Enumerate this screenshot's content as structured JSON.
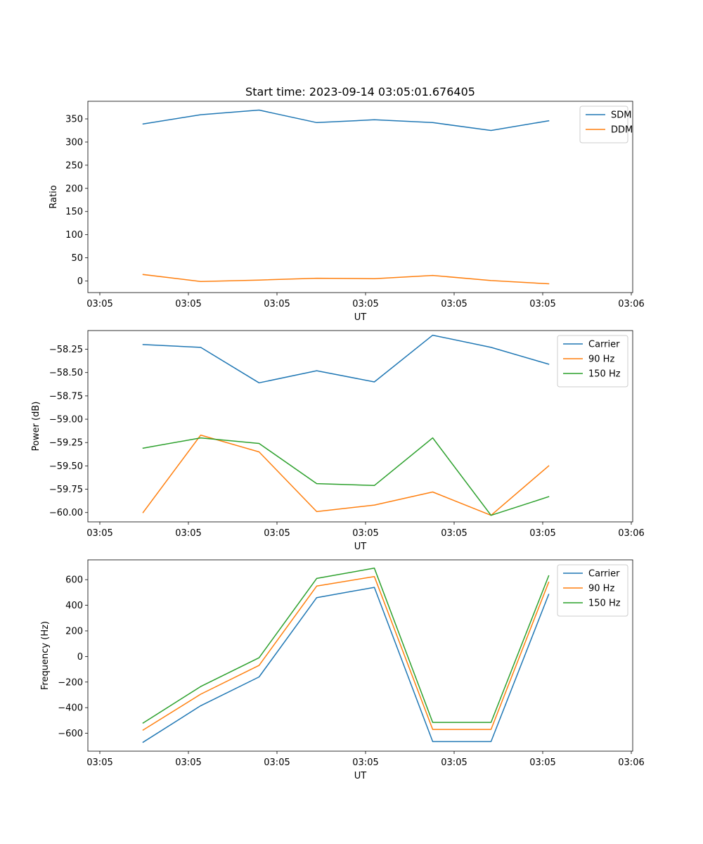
{
  "chart_data": [
    {
      "type": "line",
      "title": "Start time: 2023-09-14 03:05:01.676405",
      "xlabel": "UT",
      "ylabel": "Ratio",
      "x_tick_labels": [
        "03:05",
        "03:05",
        "03:05",
        "03:05",
        "03:05",
        "03:05",
        "03:06"
      ],
      "y_ticks": [
        0,
        50,
        100,
        150,
        200,
        250,
        300,
        350
      ],
      "y_tick_labels": [
        "0",
        "50",
        "100",
        "150",
        "200",
        "250",
        "300",
        "350"
      ],
      "ylim": [
        -25,
        388
      ],
      "legend_location": "upper-right",
      "series": [
        {
          "name": "SDM",
          "color": "#1f77b4",
          "values": [
            339,
            359,
            369,
            342,
            348,
            342,
            325,
            346
          ]
        },
        {
          "name": "DDM",
          "color": "#ff7f0e",
          "values": [
            14,
            -1,
            2,
            6,
            5,
            12,
            1,
            -6
          ]
        }
      ]
    },
    {
      "type": "line",
      "title": "",
      "xlabel": "UT",
      "ylabel": "Power (dB)",
      "x_tick_labels": [
        "03:05",
        "03:05",
        "03:05",
        "03:05",
        "03:05",
        "03:05",
        "03:06"
      ],
      "y_ticks": [
        -60.0,
        -59.75,
        -59.5,
        -59.25,
        -59.0,
        -58.75,
        -58.5,
        -58.25
      ],
      "y_tick_labels": [
        "−60.00",
        "−59.75",
        "−59.50",
        "−59.25",
        "−59.00",
        "−58.75",
        "−58.50",
        "−58.25"
      ],
      "ylim": [
        -60.1,
        -58.05
      ],
      "legend_location": "upper-right",
      "series": [
        {
          "name": "Carrier",
          "color": "#1f77b4",
          "values": [
            -58.2,
            -58.23,
            -58.61,
            -58.48,
            -58.6,
            -58.1,
            -58.23,
            -58.41
          ]
        },
        {
          "name": "90 Hz",
          "color": "#ff7f0e",
          "values": [
            -60.0,
            -59.17,
            -59.35,
            -59.99,
            -59.92,
            -59.78,
            -60.03,
            -59.5
          ]
        },
        {
          "name": "150 Hz",
          "color": "#2ca02c",
          "values": [
            -59.31,
            -59.2,
            -59.26,
            -59.69,
            -59.71,
            -59.2,
            -60.03,
            -59.83
          ]
        }
      ]
    },
    {
      "type": "line",
      "title": "",
      "xlabel": "UT",
      "ylabel": "Frequency (Hz)",
      "x_tick_labels": [
        "03:05",
        "03:05",
        "03:05",
        "03:05",
        "03:05",
        "03:05",
        "03:06"
      ],
      "y_ticks": [
        -600,
        -400,
        -200,
        0,
        200,
        400,
        600
      ],
      "y_tick_labels": [
        "−600",
        "−400",
        "−200",
        "0",
        "200",
        "400",
        "600"
      ],
      "ylim": [
        -740,
        755
      ],
      "legend_location": "upper-right",
      "series": [
        {
          "name": "Carrier",
          "color": "#1f77b4",
          "values": [
            -670,
            -385,
            -160,
            460,
            540,
            -665,
            -665,
            485
          ]
        },
        {
          "name": "90 Hz",
          "color": "#ff7f0e",
          "values": [
            -575,
            -295,
            -70,
            550,
            625,
            -570,
            -570,
            580
          ]
        },
        {
          "name": "150 Hz",
          "color": "#2ca02c",
          "values": [
            -520,
            -235,
            -10,
            610,
            690,
            -515,
            -515,
            630
          ]
        }
      ]
    }
  ]
}
